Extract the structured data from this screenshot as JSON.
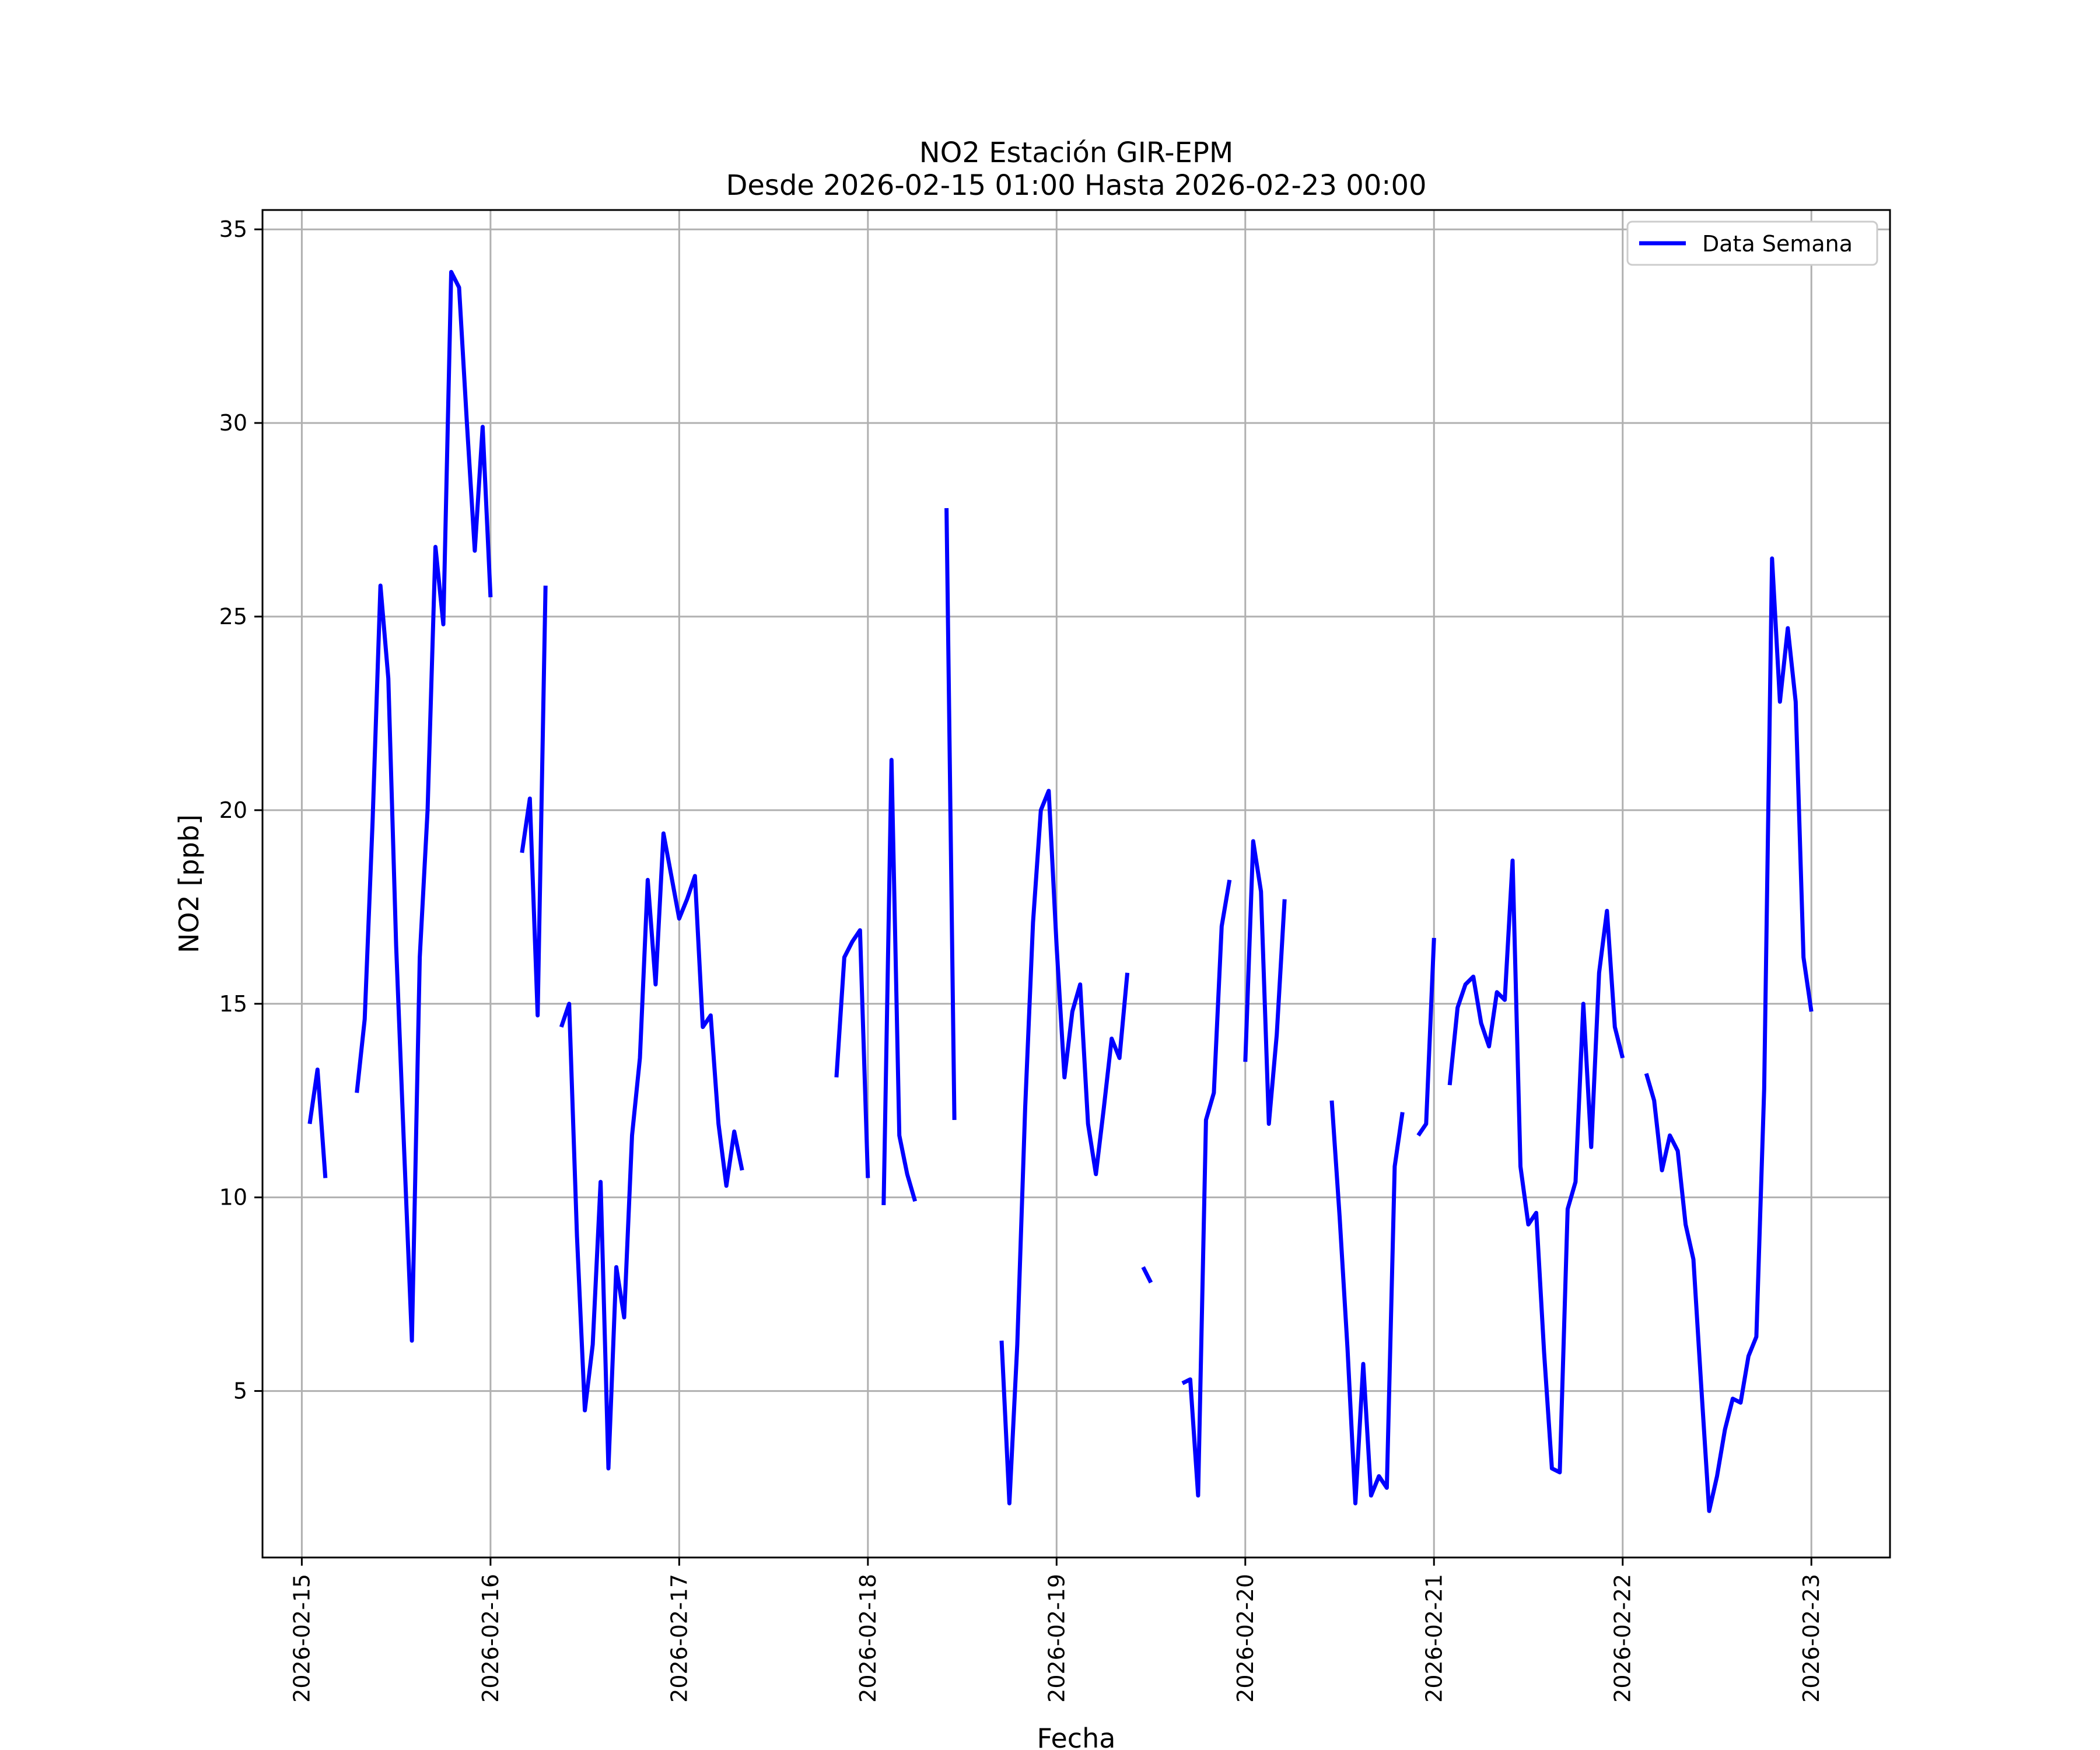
{
  "chart_data": {
    "type": "line",
    "title": [
      "NO2 Estación GIR-EPM",
      "Desde 2026-02-15 01:00 Hasta 2026-02-23 00:00"
    ],
    "xlabel": "Fecha",
    "ylabel": "NO2 [ppb]",
    "xlim": [
      "2026-02-14 19:00",
      "2026-02-23 10:00"
    ],
    "ylim": [
      0.7,
      35.5
    ],
    "x_ticks": [
      "2026-02-15",
      "2026-02-16",
      "2026-02-17",
      "2026-02-18",
      "2026-02-19",
      "2026-02-20",
      "2026-02-21",
      "2026-02-22",
      "2026-02-23"
    ],
    "y_ticks": [
      5,
      10,
      15,
      20,
      25,
      30,
      35
    ],
    "grid": true,
    "legend": {
      "position": "top-right",
      "entries": [
        "Data Semana"
      ]
    },
    "series": [
      {
        "name": "Data Semana",
        "color": "#0000ff",
        "segments": [
          [
            [
              "2026-02-15 01:00",
              11.9
            ],
            [
              "2026-02-15 02:00",
              13.3
            ],
            [
              "2026-02-15 03:00",
              10.5
            ]
          ],
          [
            [
              "2026-02-15 07:00",
              12.7
            ],
            [
              "2026-02-15 08:00",
              14.6
            ],
            [
              "2026-02-15 09:00",
              19.7
            ],
            [
              "2026-02-15 10:00",
              25.8
            ],
            [
              "2026-02-15 11:00",
              23.4
            ],
            [
              "2026-02-15 12:00",
              16.5
            ],
            [
              "2026-02-15 13:00",
              11.3
            ],
            [
              "2026-02-15 14:00",
              6.3
            ],
            [
              "2026-02-15 15:00",
              16.2
            ],
            [
              "2026-02-15 16:00",
              20.0
            ],
            [
              "2026-02-15 17:00",
              26.8
            ],
            [
              "2026-02-15 18:00",
              24.8
            ],
            [
              "2026-02-15 19:00",
              33.9
            ],
            [
              "2026-02-15 20:00",
              33.5
            ],
            [
              "2026-02-15 21:00",
              30.0
            ],
            [
              "2026-02-15 22:00",
              26.7
            ],
            [
              "2026-02-15 23:00",
              29.9
            ],
            [
              "2026-02-16 00:00",
              25.5
            ]
          ],
          [
            [
              "2026-02-16 04:00",
              18.9
            ],
            [
              "2026-02-16 05:00",
              20.3
            ],
            [
              "2026-02-16 06:00",
              14.7
            ],
            [
              "2026-02-16 07:00",
              25.8
            ]
          ],
          [
            [
              "2026-02-16 09:00",
              14.4
            ],
            [
              "2026-02-16 10:00",
              15.0
            ],
            [
              "2026-02-16 11:00",
              9.0
            ],
            [
              "2026-02-16 12:00",
              4.5
            ],
            [
              "2026-02-16 13:00",
              6.2
            ],
            [
              "2026-02-16 14:00",
              10.4
            ],
            [
              "2026-02-16 15:00",
              3.0
            ],
            [
              "2026-02-16 16:00",
              8.2
            ],
            [
              "2026-02-16 17:00",
              6.9
            ],
            [
              "2026-02-16 18:00",
              11.6
            ],
            [
              "2026-02-16 19:00",
              13.6
            ],
            [
              "2026-02-16 20:00",
              18.2
            ],
            [
              "2026-02-16 21:00",
              15.5
            ],
            [
              "2026-02-16 22:00",
              19.4
            ],
            [
              "2026-02-16 23:00",
              18.3
            ],
            [
              "2026-02-17 00:00",
              17.2
            ],
            [
              "2026-02-17 01:00",
              17.7
            ],
            [
              "2026-02-17 02:00",
              18.3
            ],
            [
              "2026-02-17 03:00",
              14.4
            ],
            [
              "2026-02-17 04:00",
              14.7
            ],
            [
              "2026-02-17 05:00",
              11.9
            ],
            [
              "2026-02-17 06:00",
              10.3
            ],
            [
              "2026-02-17 07:00",
              11.7
            ],
            [
              "2026-02-17 08:00",
              10.7
            ]
          ],
          [
            [
              "2026-02-17 20:00",
              13.1
            ],
            [
              "2026-02-17 21:00",
              16.2
            ],
            [
              "2026-02-17 22:00",
              16.6
            ],
            [
              "2026-02-17 23:00",
              16.9
            ],
            [
              "2026-02-18 00:00",
              10.5
            ]
          ],
          [
            [
              "2026-02-18 02:00",
              9.8
            ],
            [
              "2026-02-18 03:00",
              21.3
            ],
            [
              "2026-02-18 04:00",
              11.6
            ],
            [
              "2026-02-18 05:00",
              10.6
            ],
            [
              "2026-02-18 06:00",
              9.9
            ]
          ],
          [
            [
              "2026-02-18 10:00",
              27.8
            ],
            [
              "2026-02-18 11:00",
              12.0
            ]
          ],
          [
            [
              "2026-02-18 17:00",
              6.3
            ],
            [
              "2026-02-18 18:00",
              2.1
            ],
            [
              "2026-02-18 19:00",
              6.2
            ],
            [
              "2026-02-18 20:00",
              12.3
            ],
            [
              "2026-02-18 21:00",
              17.1
            ],
            [
              "2026-02-18 22:00",
              20.0
            ],
            [
              "2026-02-18 23:00",
              20.5
            ],
            [
              "2026-02-19 00:00",
              16.5
            ],
            [
              "2026-02-19 01:00",
              13.1
            ],
            [
              "2026-02-19 02:00",
              14.8
            ],
            [
              "2026-02-19 03:00",
              15.5
            ],
            [
              "2026-02-19 04:00",
              11.9
            ],
            [
              "2026-02-19 05:00",
              10.6
            ],
            [
              "2026-02-19 06:00",
              12.3
            ],
            [
              "2026-02-19 07:00",
              14.1
            ],
            [
              "2026-02-19 08:00",
              13.6
            ],
            [
              "2026-02-19 09:00",
              15.8
            ]
          ],
          [
            [
              "2026-02-19 11:00",
              8.2
            ],
            [
              "2026-02-19 12:00",
              7.8
            ]
          ],
          [
            [
              "2026-02-19 16:00",
              5.2
            ],
            [
              "2026-02-19 17:00",
              5.3
            ],
            [
              "2026-02-19 18:00",
              2.3
            ],
            [
              "2026-02-19 19:00",
              12.0
            ],
            [
              "2026-02-19 20:00",
              12.7
            ],
            [
              "2026-02-19 21:00",
              17.0
            ],
            [
              "2026-02-19 22:00",
              18.2
            ]
          ],
          [
            [
              "2026-02-20 00:00",
              13.5
            ],
            [
              "2026-02-20 01:00",
              19.2
            ],
            [
              "2026-02-20 02:00",
              17.9
            ],
            [
              "2026-02-20 03:00",
              11.9
            ],
            [
              "2026-02-20 04:00",
              14.2
            ],
            [
              "2026-02-20 05:00",
              17.7
            ]
          ],
          [
            [
              "2026-02-20 11:00",
              12.5
            ],
            [
              "2026-02-20 12:00",
              9.5
            ],
            [
              "2026-02-20 13:00",
              6.1
            ],
            [
              "2026-02-20 14:00",
              2.1
            ],
            [
              "2026-02-20 15:00",
              5.7
            ],
            [
              "2026-02-20 16:00",
              2.3
            ],
            [
              "2026-02-20 17:00",
              2.8
            ],
            [
              "2026-02-20 18:00",
              2.5
            ],
            [
              "2026-02-20 19:00",
              10.8
            ],
            [
              "2026-02-20 20:00",
              12.2
            ]
          ],
          [
            [
              "2026-02-20 22:00",
              11.6
            ],
            [
              "2026-02-20 23:00",
              11.9
            ],
            [
              "2026-02-21 00:00",
              16.7
            ]
          ],
          [
            [
              "2026-02-21 02:00",
              12.9
            ],
            [
              "2026-02-21 03:00",
              14.9
            ],
            [
              "2026-02-21 04:00",
              15.5
            ],
            [
              "2026-02-21 05:00",
              15.7
            ],
            [
              "2026-02-21 06:00",
              14.5
            ],
            [
              "2026-02-21 07:00",
              13.9
            ],
            [
              "2026-02-21 08:00",
              15.3
            ],
            [
              "2026-02-21 09:00",
              15.1
            ],
            [
              "2026-02-21 10:00",
              18.7
            ],
            [
              "2026-02-21 11:00",
              10.8
            ],
            [
              "2026-02-21 12:00",
              9.3
            ],
            [
              "2026-02-21 13:00",
              9.6
            ],
            [
              "2026-02-21 14:00",
              6.0
            ],
            [
              "2026-02-21 15:00",
              3.0
            ],
            [
              "2026-02-21 16:00",
              2.9
            ],
            [
              "2026-02-21 17:00",
              9.7
            ],
            [
              "2026-02-21 18:00",
              10.4
            ],
            [
              "2026-02-21 19:00",
              15.0
            ],
            [
              "2026-02-21 20:00",
              11.3
            ],
            [
              "2026-02-21 21:00",
              15.8
            ],
            [
              "2026-02-21 22:00",
              17.4
            ],
            [
              "2026-02-21 23:00",
              14.4
            ],
            [
              "2026-02-22 00:00",
              13.6
            ]
          ],
          [
            [
              "2026-02-22 03:00",
              13.2
            ],
            [
              "2026-02-22 04:00",
              12.5
            ],
            [
              "2026-02-22 05:00",
              10.7
            ],
            [
              "2026-02-22 06:00",
              11.6
            ],
            [
              "2026-02-22 07:00",
              11.2
            ],
            [
              "2026-02-22 08:00",
              9.3
            ],
            [
              "2026-02-22 09:00",
              8.4
            ],
            [
              "2026-02-22 10:00",
              5.1
            ],
            [
              "2026-02-22 11:00",
              1.9
            ],
            [
              "2026-02-22 12:00",
              2.8
            ],
            [
              "2026-02-22 13:00",
              4.0
            ],
            [
              "2026-02-22 14:00",
              4.8
            ],
            [
              "2026-02-22 15:00",
              4.7
            ],
            [
              "2026-02-22 16:00",
              5.9
            ],
            [
              "2026-02-22 17:00",
              6.4
            ],
            [
              "2026-02-22 18:00",
              12.8
            ],
            [
              "2026-02-22 19:00",
              26.5
            ],
            [
              "2026-02-22 20:00",
              22.8
            ],
            [
              "2026-02-22 21:00",
              24.7
            ],
            [
              "2026-02-22 22:00",
              22.8
            ],
            [
              "2026-02-22 23:00",
              16.2
            ],
            [
              "2026-02-23 00:00",
              14.8
            ]
          ]
        ]
      }
    ]
  }
}
